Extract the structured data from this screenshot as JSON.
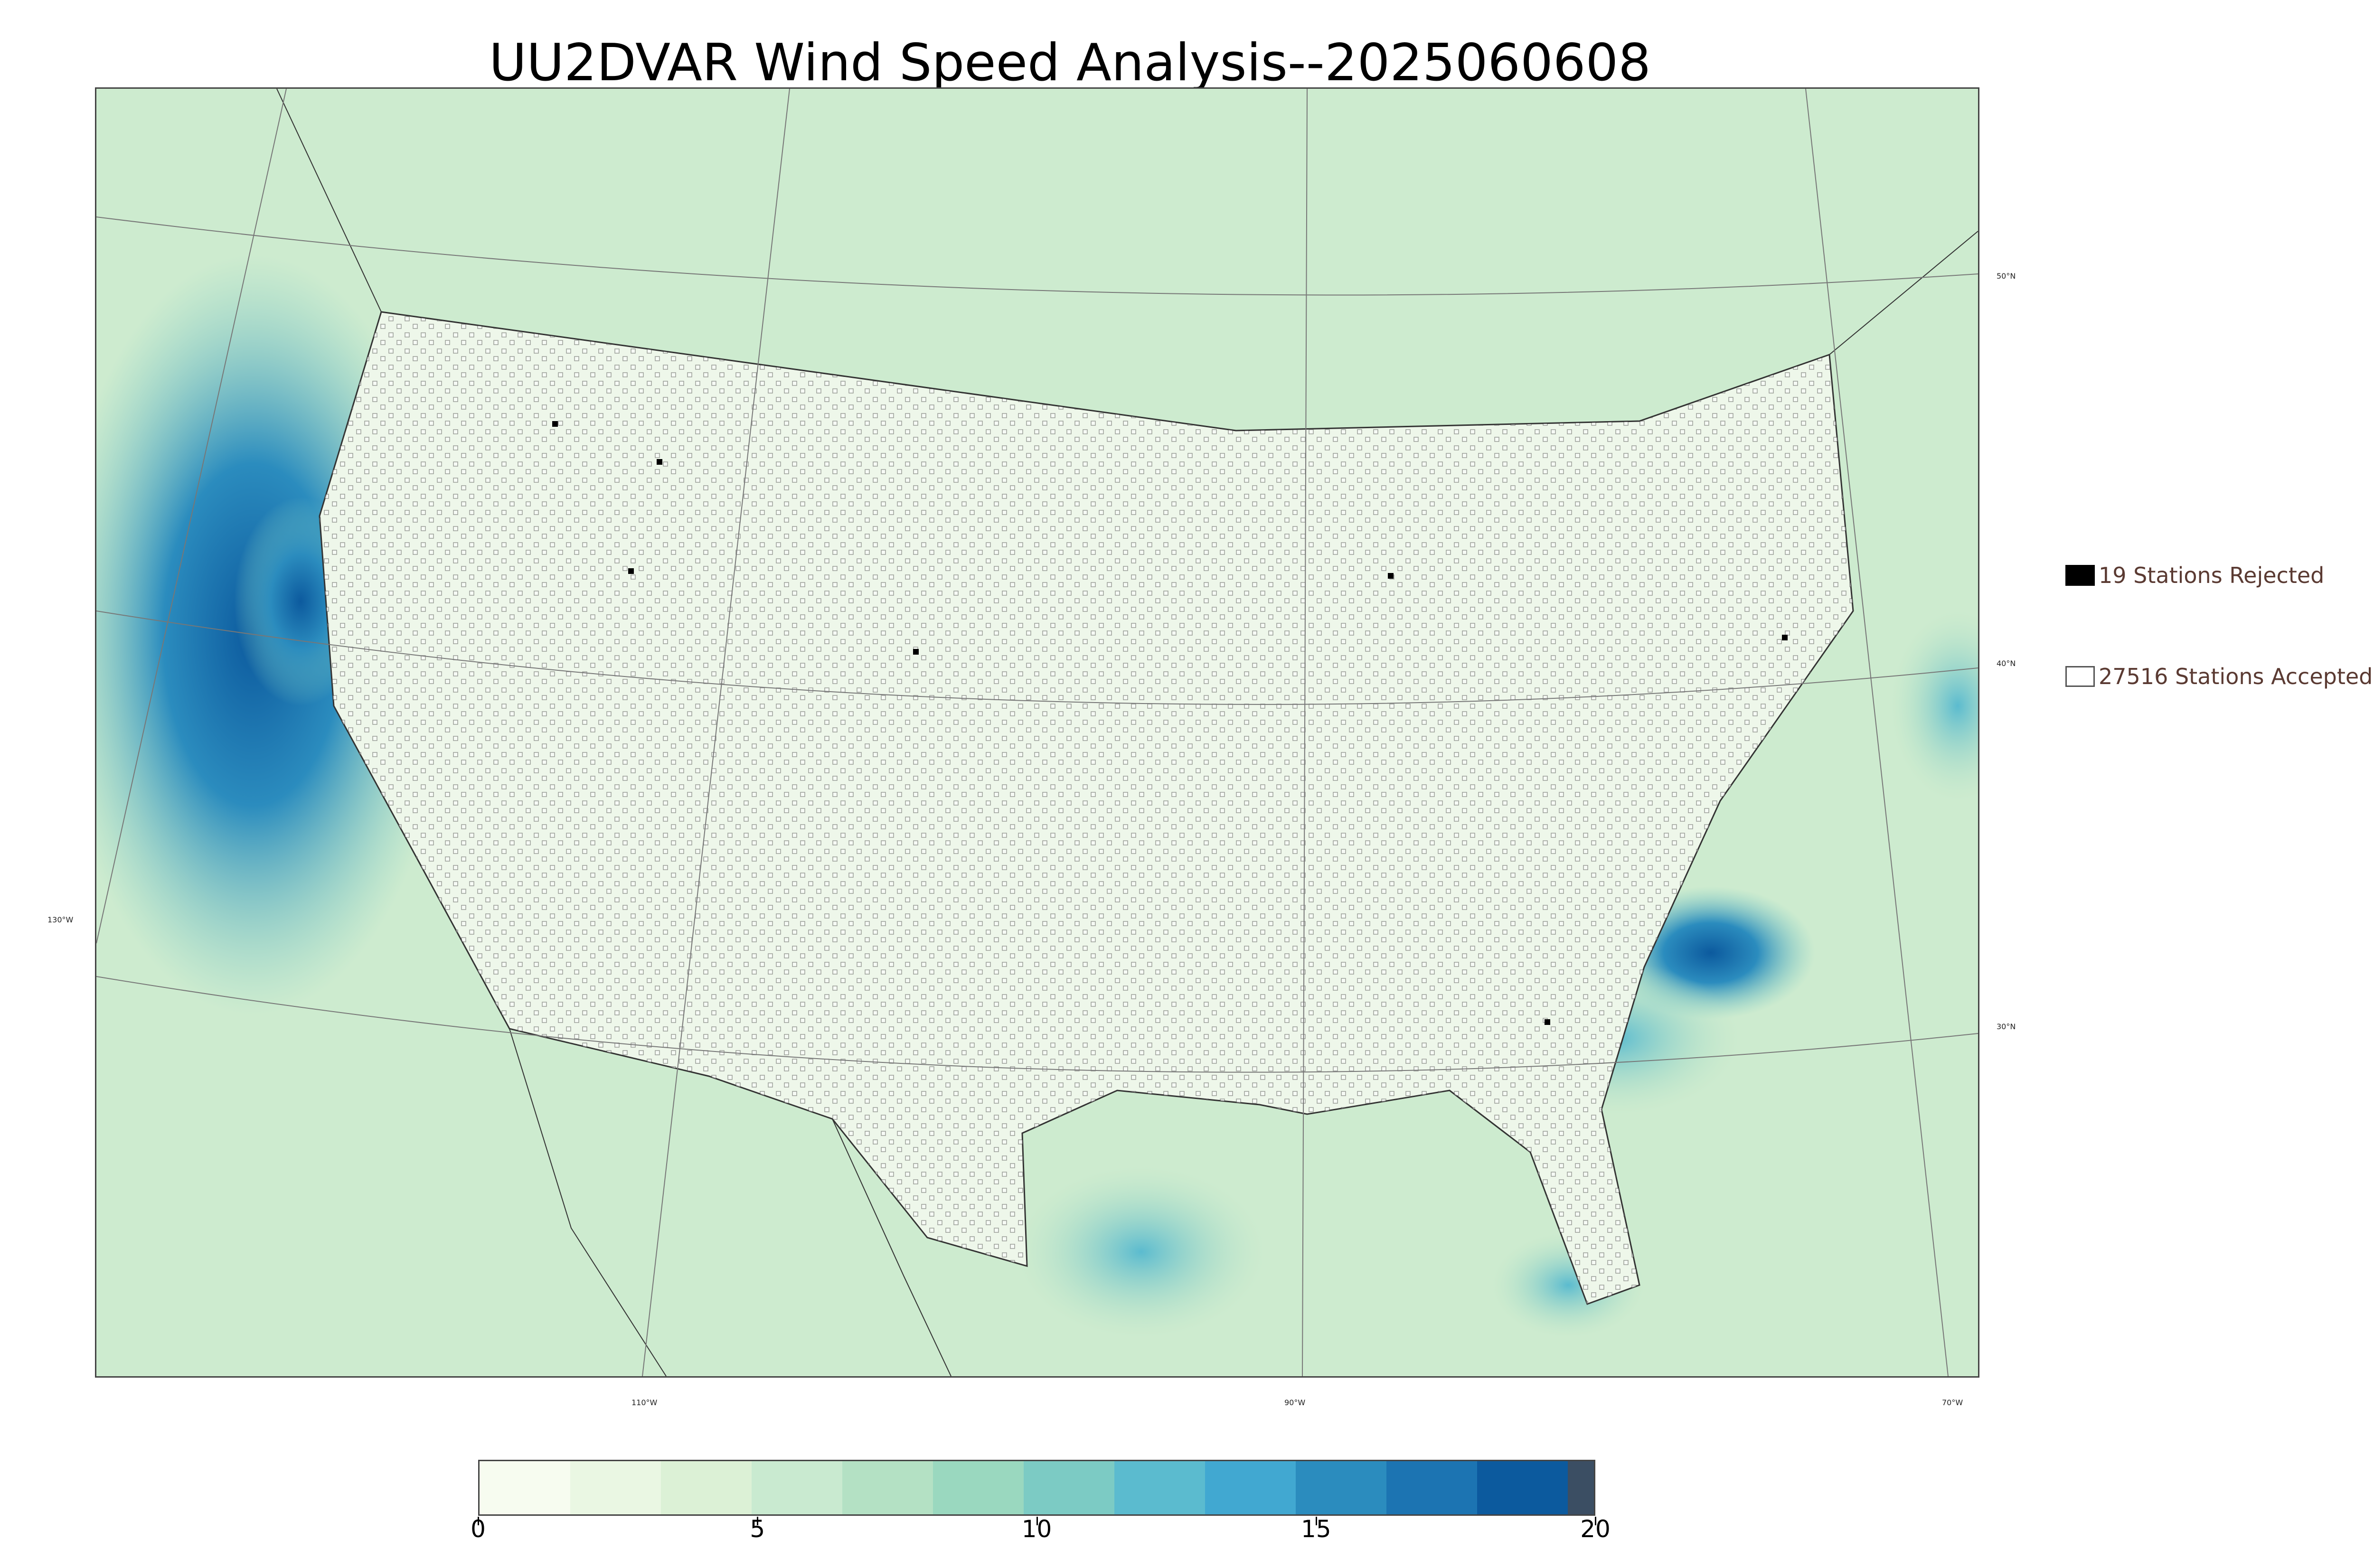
{
  "title": "UU2DVAR Wind Speed Analysis--2025060608",
  "legend": {
    "rejected": {
      "label": "19 Stations Rejected",
      "color": "#000000"
    },
    "accepted": {
      "label": "27516 Stations Accepted",
      "color": "#ffffff"
    }
  },
  "graticule": {
    "latitudes": [
      "50°N",
      "40°N",
      "30°N"
    ],
    "longitudes": [
      "130°W",
      "110°W",
      "90°W",
      "70°W"
    ]
  },
  "colorbar": {
    "min": 0,
    "max": 20,
    "ticks": [
      "0",
      "5",
      "10",
      "15",
      "20"
    ],
    "colors": [
      "#f7fcf0",
      "#eaf7e3",
      "#dcf1d6",
      "#c9ead0",
      "#b4e1c4",
      "#9ad8bf",
      "#7ccbc4",
      "#5bbbcf",
      "#41a8d1",
      "#2b8cbe",
      "#1c74b2",
      "#0c5a9e",
      "#3b4e63"
    ]
  },
  "stations": {
    "rejected_count": 19,
    "accepted_count": 27516
  }
}
